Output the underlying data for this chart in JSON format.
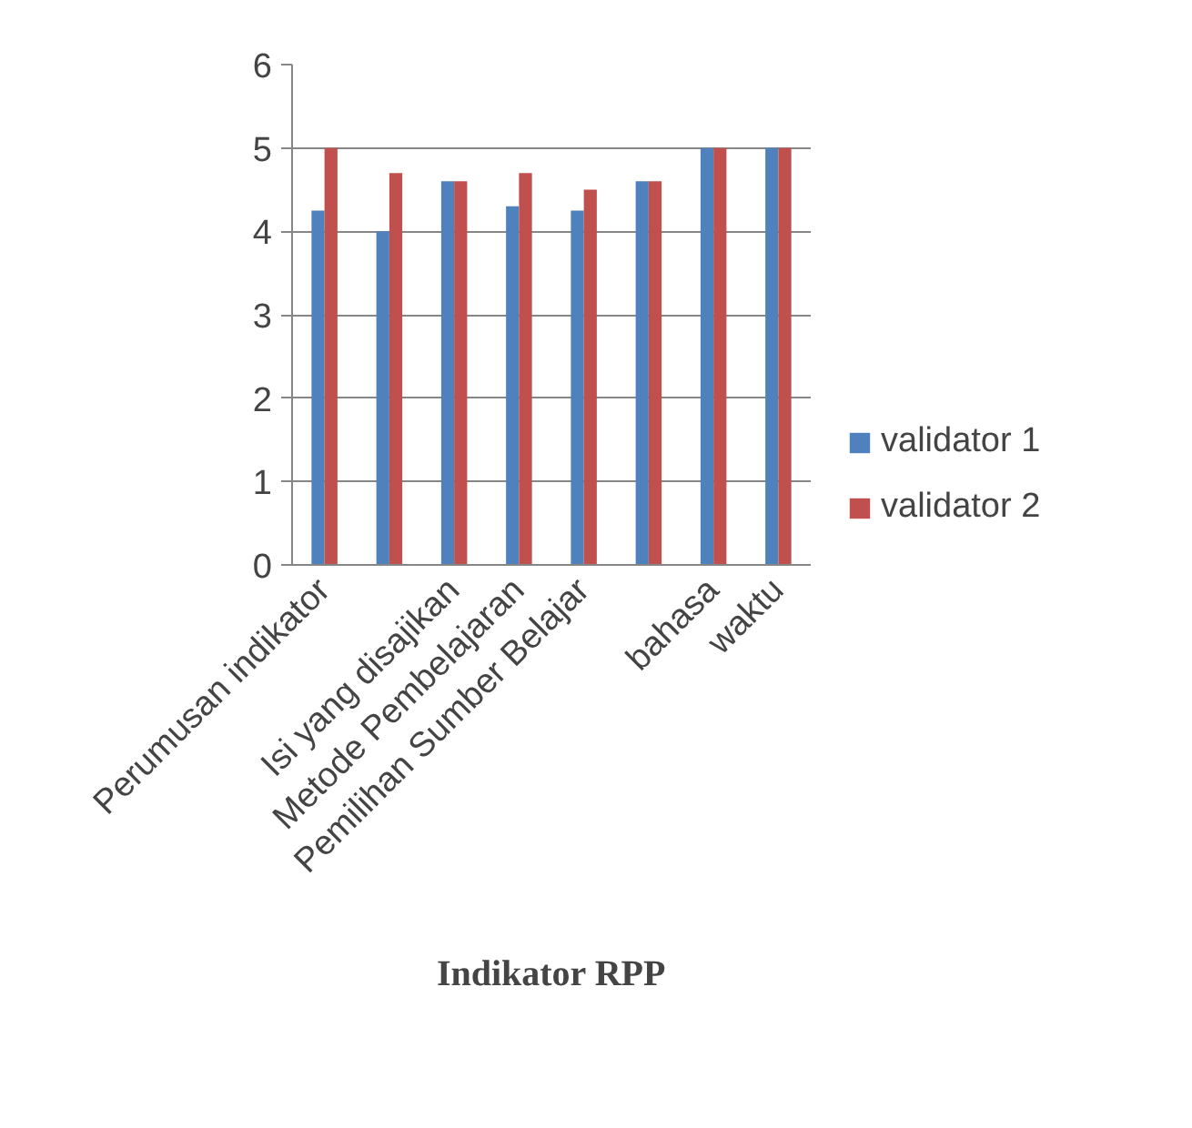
{
  "chart_data": {
    "type": "bar",
    "xlabel": "Indikator RPP",
    "categories": [
      "Perumusan indikator",
      null,
      "Isi yang disajikan",
      "Metode Pembelajaran",
      "Pemilihan Sumber Belajar",
      null,
      "bahasa",
      "waktu"
    ],
    "series": [
      {
        "name": "validator 1",
        "color": "#4f81bd",
        "values": [
          4.25,
          4.0,
          4.6,
          4.3,
          4.25,
          4.6,
          5,
          5
        ]
      },
      {
        "name": "validator 2",
        "color": "#c0504d",
        "values": [
          5,
          4.7,
          4.6,
          4.7,
          4.5,
          4.6,
          5,
          5
        ]
      }
    ],
    "ylim": [
      0,
      6
    ],
    "yticks": [
      0,
      1,
      2,
      3,
      4,
      5,
      6
    ],
    "grid": "y",
    "legend": "right"
  }
}
